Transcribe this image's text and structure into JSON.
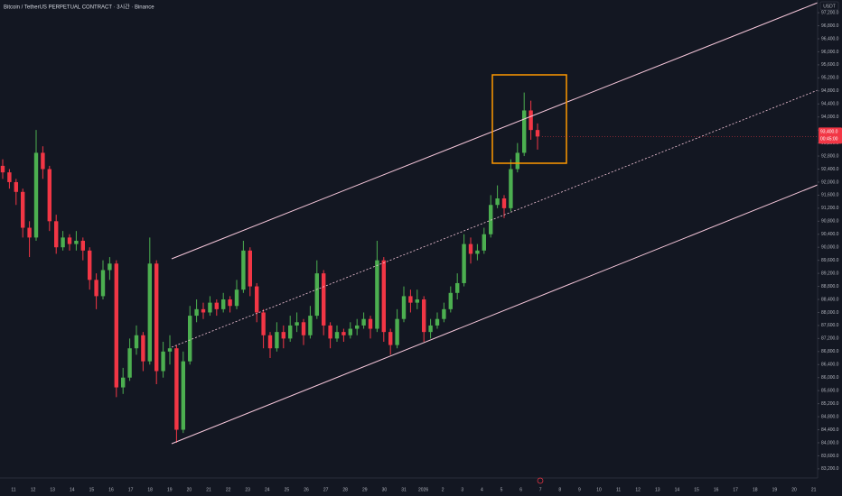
{
  "chart_data": {
    "type": "candlestick",
    "title": "Bitcoin / TetherUS PERPETUAL CONTRACT · 3시간 · Binance",
    "currency": "USDT",
    "up_color": "#4caf50",
    "down_color": "#f23645",
    "x_labels": [
      "11",
      "12",
      "13",
      "14",
      "15",
      "16",
      "17",
      "18",
      "19",
      "20",
      "21",
      "22",
      "23",
      "24",
      "25",
      "26",
      "27",
      "28",
      "29",
      "30",
      "31",
      "2026",
      "2",
      "3",
      "4",
      "5",
      "6",
      "7",
      "8",
      "9",
      "10",
      "11",
      "12",
      "13",
      "14",
      "15",
      "16",
      "17",
      "18",
      "19",
      "20",
      "21"
    ],
    "ylim": [
      82920,
      97590
    ],
    "yticks": [
      {
        "value": 97200,
        "label": "97,200.0"
      },
      {
        "value": 96800,
        "label": "96,800.0"
      },
      {
        "value": 96400,
        "label": "96,400.0"
      },
      {
        "value": 96000,
        "label": "96,000.0"
      },
      {
        "value": 95600,
        "label": "95,600.0"
      },
      {
        "value": 95200,
        "label": "95,200.0"
      },
      {
        "value": 94800,
        "label": "94,800.0"
      },
      {
        "value": 94400,
        "label": "94,400.0"
      },
      {
        "value": 94000,
        "label": "94,000.0"
      },
      {
        "value": 93600,
        "label": "93,600.0"
      },
      {
        "value": 93200,
        "label": "93,200.0"
      },
      {
        "value": 92800,
        "label": "92,800.0"
      },
      {
        "value": 92400,
        "label": "92,400.0"
      },
      {
        "value": 92000,
        "label": "92,000.0"
      },
      {
        "value": 91600,
        "label": "91,600.0"
      },
      {
        "value": 91200,
        "label": "91,200.0"
      },
      {
        "value": 90800,
        "label": "90,800.0"
      },
      {
        "value": 90400,
        "label": "90,400.0"
      },
      {
        "value": 90000,
        "label": "90,000.0"
      },
      {
        "value": 89600,
        "label": "89,600.0"
      },
      {
        "value": 89200,
        "label": "89,200.0"
      },
      {
        "value": 88800,
        "label": "88,800.0"
      },
      {
        "value": 88400,
        "label": "88,400.0"
      },
      {
        "value": 88000,
        "label": "88,000.0"
      },
      {
        "value": 87600,
        "label": "87,600.0"
      },
      {
        "value": 87200,
        "label": "87,200.0"
      },
      {
        "value": 86800,
        "label": "86,800.0"
      },
      {
        "value": 86400,
        "label": "86,400.0"
      },
      {
        "value": 86000,
        "label": "86,000.0"
      },
      {
        "value": 85600,
        "label": "85,600.0"
      },
      {
        "value": 85200,
        "label": "85,200.0"
      },
      {
        "value": 84800,
        "label": "84,800.0"
      },
      {
        "value": 84400,
        "label": "84,400.0"
      },
      {
        "value": 84000,
        "label": "84,000.0"
      },
      {
        "value": 83600,
        "label": "83,600.0"
      },
      {
        "value": 83200,
        "label": "83,200.0"
      }
    ],
    "open": [
      92500,
      92300,
      92000,
      91700,
      90600,
      90300,
      92900,
      92400,
      90800,
      90000,
      90300,
      90100,
      90200,
      89900,
      89000,
      88500,
      89300,
      89500,
      85700,
      86000,
      86900,
      87300,
      86500,
      89500,
      86200,
      86800,
      86900,
      84400,
      86500,
      87900,
      88100,
      88000,
      88300,
      88100,
      88400,
      88200,
      88700,
      89900,
      88800,
      88000,
      87300,
      86900,
      87400,
      87200,
      87600,
      87700,
      87300,
      87900,
      89200,
      87600,
      87200,
      87400,
      87300,
      87500,
      87600,
      87800,
      87500,
      89600,
      87400,
      87000,
      87800,
      88500,
      88300,
      88400,
      87400,
      87600,
      87800,
      88100,
      88600,
      88900,
      90100,
      89800,
      89900,
      90400,
      91300,
      91500,
      91200,
      92400,
      92900,
      94200,
      93600
    ],
    "high": [
      92700,
      92400,
      92100,
      91800,
      90800,
      93600,
      93100,
      92500,
      91000,
      90500,
      90400,
      90500,
      90300,
      90000,
      89200,
      89600,
      89700,
      89600,
      86300,
      87200,
      87600,
      87400,
      90300,
      89600,
      87100,
      87300,
      87000,
      86800,
      88200,
      88400,
      88300,
      88500,
      88400,
      88600,
      88500,
      89000,
      90200,
      90000,
      88900,
      88100,
      87400,
      87700,
      87600,
      87900,
      88000,
      87800,
      88200,
      89600,
      89300,
      87700,
      87600,
      87500,
      87700,
      87800,
      88000,
      87900,
      90200,
      89700,
      87500,
      88100,
      88800,
      88700,
      88700,
      88500,
      87800,
      88000,
      88300,
      88800,
      89200,
      90400,
      90300,
      90100,
      90600,
      91600,
      91900,
      91600,
      92700,
      93200,
      94750,
      94500,
      93800
    ],
    "low": [
      92100,
      91800,
      91300,
      90300,
      89700,
      90200,
      92100,
      90500,
      89800,
      89900,
      89900,
      89900,
      89600,
      88700,
      88100,
      88400,
      89000,
      85400,
      85500,
      85900,
      86700,
      86200,
      86400,
      85800,
      86000,
      86400,
      84000,
      84300,
      86400,
      87700,
      87800,
      87900,
      87900,
      88000,
      88000,
      88100,
      88600,
      88500,
      87700,
      86900,
      86600,
      86800,
      86900,
      87100,
      87400,
      87000,
      87200,
      87800,
      87300,
      86900,
      87100,
      87100,
      87200,
      87300,
      87500,
      87200,
      87400,
      87100,
      86700,
      86900,
      87700,
      88000,
      88100,
      87100,
      87200,
      87500,
      87700,
      88000,
      88400,
      88800,
      89500,
      89600,
      89800,
      90300,
      91200,
      90900,
      91100,
      92300,
      92800,
      93300,
      93000
    ],
    "close": [
      92300,
      92000,
      91700,
      90600,
      90300,
      92900,
      92400,
      90800,
      90000,
      90300,
      90100,
      90200,
      89900,
      89000,
      88500,
      89300,
      89500,
      85700,
      86000,
      86900,
      87300,
      86500,
      89500,
      86200,
      86800,
      86900,
      84400,
      86500,
      87900,
      88100,
      88000,
      88300,
      88100,
      88400,
      88200,
      88700,
      89900,
      88800,
      88000,
      87300,
      86900,
      87400,
      87200,
      87600,
      87700,
      87300,
      87900,
      89200,
      87600,
      87200,
      87400,
      87300,
      87500,
      87600,
      87800,
      87500,
      89600,
      87400,
      87000,
      87800,
      88500,
      88300,
      88400,
      87400,
      87600,
      87800,
      88100,
      88600,
      88900,
      90100,
      89800,
      89900,
      90400,
      91300,
      91500,
      91200,
      92400,
      92900,
      94200,
      93600,
      93400
    ],
    "price_label": {
      "value": 93400,
      "label": "93,400.0"
    },
    "countdown": "00:45:00"
  }
}
